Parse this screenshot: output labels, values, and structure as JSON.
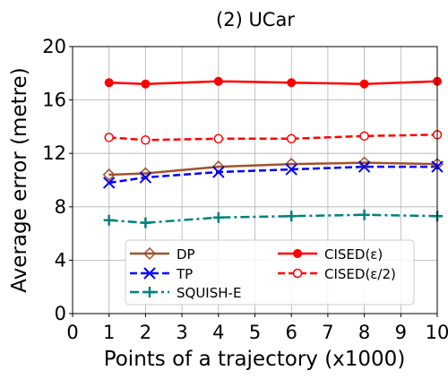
{
  "chart_data": {
    "type": "line",
    "title": "(2) UCar",
    "xlabel": "Points of a trajectory (x1000)",
    "ylabel": "Average error (metre)",
    "xlim": [
      0,
      10
    ],
    "ylim": [
      0,
      20
    ],
    "x_ticks": [
      0,
      1,
      2,
      3,
      4,
      5,
      6,
      7,
      8,
      9,
      10
    ],
    "y_ticks": [
      0,
      4,
      8,
      12,
      16,
      20
    ],
    "x": [
      1,
      2,
      4,
      6,
      8,
      10
    ],
    "grid": true,
    "legend_position": "lower-center",
    "series": [
      {
        "name": "DP",
        "values": [
          10.4,
          10.5,
          11.0,
          11.2,
          11.3,
          11.2
        ],
        "color": "#a0522d",
        "dash": "solid",
        "marker": "diamond-open"
      },
      {
        "name": "TP",
        "values": [
          9.8,
          10.2,
          10.6,
          10.8,
          11.0,
          11.0
        ],
        "color": "#0000ff",
        "dash": "dashed",
        "marker": "x"
      },
      {
        "name": "SQUISH-E",
        "values": [
          7.0,
          6.8,
          7.2,
          7.3,
          7.4,
          7.3
        ],
        "color": "#008080",
        "dash": "dashdot",
        "marker": "plus"
      },
      {
        "name": "CISED(ε)",
        "values": [
          17.3,
          17.2,
          17.4,
          17.3,
          17.2,
          17.4
        ],
        "color": "#ff0000",
        "dash": "solid",
        "marker": "circle-filled"
      },
      {
        "name": "CISED(ε/2)",
        "values": [
          13.2,
          13.0,
          13.1,
          13.1,
          13.3,
          13.4
        ],
        "color": "#ff0000",
        "dash": "dashed",
        "marker": "circle-open"
      }
    ]
  }
}
